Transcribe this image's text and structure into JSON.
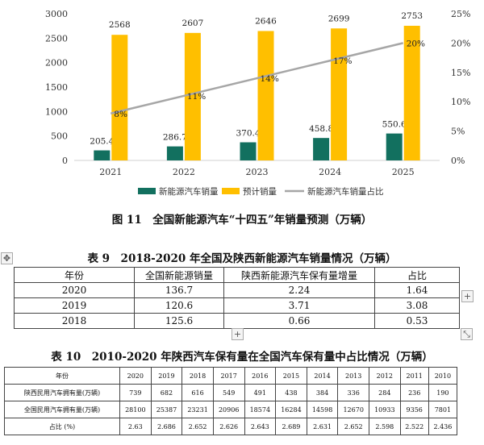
{
  "chart_data": {
    "type": "bar",
    "categories": [
      "2021",
      "2022",
      "2023",
      "2024",
      "2025"
    ],
    "series": [
      {
        "name": "新能源汽车销量",
        "type": "bar",
        "axis": "left",
        "color": "#12705f",
        "values": [
          205.4,
          286.7,
          370.4,
          458.8,
          550.6
        ],
        "labels": [
          "205.4",
          "286.7",
          "370.4",
          "458.8",
          "550.6"
        ]
      },
      {
        "name": "预计销量",
        "type": "bar",
        "axis": "left",
        "color": "#ffbf00",
        "values": [
          2568,
          2607,
          2646,
          2699,
          2753
        ],
        "labels": [
          "2568",
          "2607",
          "2646",
          "2699",
          "2753"
        ]
      },
      {
        "name": "新能源汽车销量占比",
        "type": "line",
        "axis": "right",
        "color": "#a6a6a6",
        "values": [
          8,
          11,
          14,
          17,
          20
        ],
        "labels": [
          "8%",
          "11%",
          "14%",
          "17%",
          "20%"
        ]
      }
    ],
    "ylim": [
      0,
      3000
    ],
    "yticks": [
      "0",
      "500",
      "1000",
      "1500",
      "2000",
      "2500",
      "3000"
    ],
    "y2lim": [
      0,
      25
    ],
    "y2ticks": [
      "0%",
      "5%",
      "10%",
      "15%",
      "20%",
      "25%"
    ],
    "legend": "bottom",
    "grid": false
  },
  "captions": {
    "fig11": "图 11　全国新能源汽车“十四五”年销量预测（万辆）",
    "table9": "表 9　2018-2020 年全国及陕西新能源汽车销量情况（万辆）",
    "table10": "表 10　2010-2020 年陕西汽车保有量在全国汽车保有量中占比情况（万辆）"
  },
  "table9": {
    "header": [
      "年份",
      "全国新能源销量",
      "陕西新能源汽车保有量增量",
      "占比"
    ],
    "rows": [
      [
        "2020",
        "136.7",
        "2.24",
        "1.64"
      ],
      [
        "2019",
        "120.6",
        "3.71",
        "3.08"
      ],
      [
        "2018",
        "125.6",
        "0.66",
        "0.53"
      ]
    ]
  },
  "table10": {
    "header": [
      "年份",
      "2020",
      "2019",
      "2018",
      "2017",
      "2016",
      "2015",
      "2014",
      "2013",
      "2012",
      "2011",
      "2010"
    ],
    "rows": [
      [
        "陕西民用汽车拥有量(万辆)",
        "739",
        "682",
        "616",
        "549",
        "491",
        "438",
        "384",
        "336",
        "284",
        "236",
        "190"
      ],
      [
        "全国民用汽车拥有量(万辆)",
        "28100",
        "25387",
        "23231",
        "20906",
        "18574",
        "16284",
        "14598",
        "12670",
        "10933",
        "9356",
        "7801"
      ],
      [
        "占比 (%)",
        "2.63",
        "2.686",
        "2.652",
        "2.626",
        "2.643",
        "2.689",
        "2.631",
        "2.652",
        "2.598",
        "2.522",
        "2.436"
      ]
    ]
  },
  "ui": {
    "move_handle": "✥",
    "add_row": "+",
    "add_col": "+",
    "resize": "⤡"
  }
}
